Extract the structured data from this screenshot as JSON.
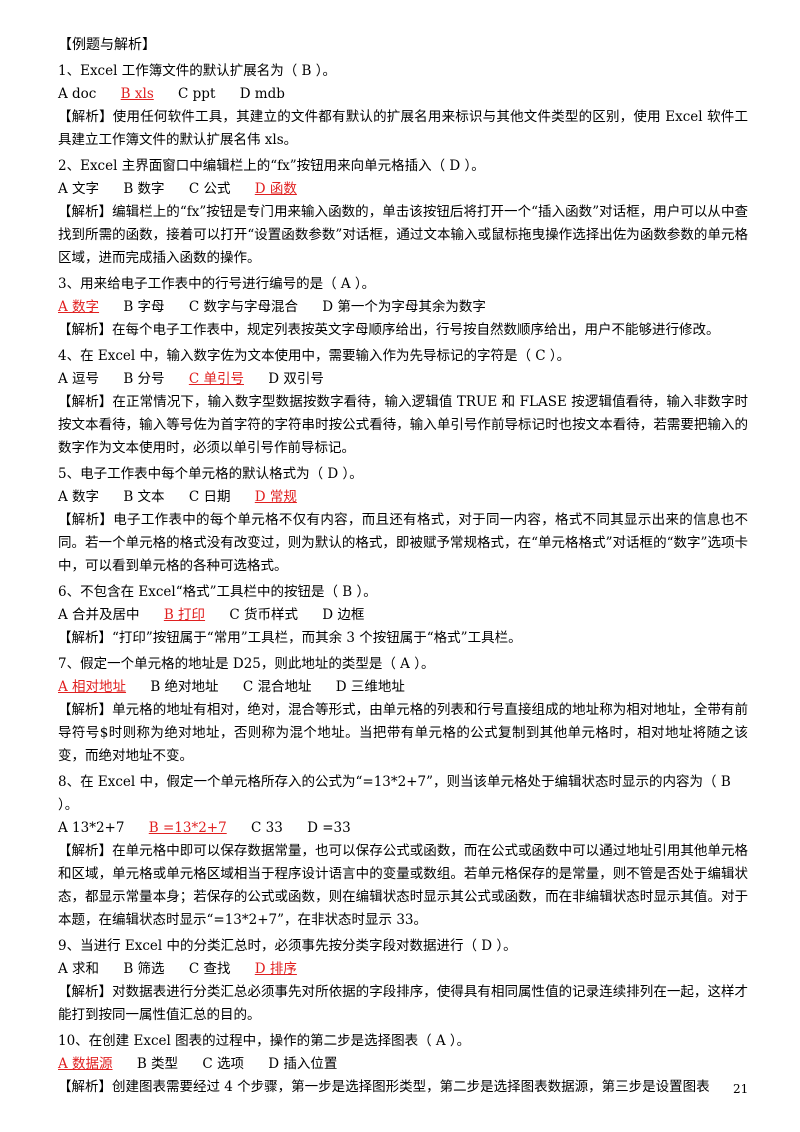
{
  "section_title": "【例题与解析】",
  "questions": [
    {
      "stem": "1、Excel 工作簿文件的默认扩展名为（ B ）。",
      "options": [
        {
          "text": "A doc",
          "correct": false
        },
        {
          "text": "B xls",
          "correct": true
        },
        {
          "text": "C ppt",
          "correct": false
        },
        {
          "text": "D mdb",
          "correct": false
        }
      ],
      "explanation": "【解析】使用任何软件工具，其建立的文件都有默认的扩展名用来标识与其他文件类型的区别，使用 Excel 软件工具建立工作簿文件的默认扩展名伟 xls。"
    },
    {
      "stem": "2、Excel 主界面窗口中编辑栏上的“fx”按钮用来向单元格插入（ D ）。",
      "options": [
        {
          "text": "A 文字",
          "correct": false
        },
        {
          "text": "B 数字",
          "correct": false
        },
        {
          "text": "C 公式",
          "correct": false
        },
        {
          "text": "D 函数",
          "correct": true
        }
      ],
      "explanation": "【解析】编辑栏上的“fx”按钮是专门用来输入函数的，单击该按钮后将打开一个“插入函数”对话框，用户可以从中查找到所需的函数，接着可以打开“设置函数参数”对话框，通过文本输入或鼠标拖曳操作选择出佐为函数参数的单元格区域，进而完成插入函数的操作。"
    },
    {
      "stem": "3、用来给电子工作表中的行号进行编号的是（ A ）。",
      "options": [
        {
          "text": "A 数字",
          "correct": true
        },
        {
          "text": "B 字母",
          "correct": false
        },
        {
          "text": "C 数字与字母混合",
          "correct": false
        },
        {
          "text": "D 第一个为字母其余为数字",
          "correct": false
        }
      ],
      "explanation": "【解析】在每个电子工作表中，规定列表按英文字母顺序给出，行号按自然数顺序给出，用户不能够进行修改。"
    },
    {
      "stem": "4、在 Excel 中，输入数字佐为文本使用中，需要输入作为先导标记的字符是（ C ）。",
      "options": [
        {
          "text": "A 逗号",
          "correct": false
        },
        {
          "text": "B 分号",
          "correct": false
        },
        {
          "text": "C 单引号",
          "correct": true
        },
        {
          "text": "D 双引号",
          "correct": false
        }
      ],
      "explanation": "【解析】在正常情况下，输入数字型数据按数字看待，输入逻辑值 TRUE 和 FLASE 按逻辑值看待，输入非数字时按文本看待，输入等号佐为首字符的字符串时按公式看待，输入单引号作前导标记时也按文本看待，若需要把输入的数字作为文本使用时，必须以单引号作前导标记。"
    },
    {
      "stem": "5、电子工作表中每个单元格的默认格式为（ D ）。",
      "options": [
        {
          "text": "A 数字",
          "correct": false
        },
        {
          "text": "B 文本",
          "correct": false
        },
        {
          "text": "C 日期",
          "correct": false
        },
        {
          "text": "D 常规",
          "correct": true
        }
      ],
      "explanation": "【解析】电子工作表中的每个单元格不仅有内容，而且还有格式，对于同一内容，格式不同其显示出来的信息也不同。若一个单元格的格式没有改变过，则为默认的格式，即被赋予常规格式，在“单元格格式”对话框的“数字”选项卡中，可以看到单元格的各种可选格式。"
    },
    {
      "stem": "6、不包含在 Excel“格式”工具栏中的按钮是（ B ）。",
      "options": [
        {
          "text": "A 合并及居中",
          "correct": false
        },
        {
          "text": "B 打印",
          "correct": true
        },
        {
          "text": "C 货币样式",
          "correct": false
        },
        {
          "text": "D 边框",
          "correct": false
        }
      ],
      "explanation": "【解析】“打印”按钮属于“常用”工具栏，而其余 3 个按钮属于“格式”工具栏。"
    },
    {
      "stem": "7、假定一个单元格的地址是 D25，则此地址的类型是（ A ）。",
      "options": [
        {
          "text": "A 相对地址",
          "correct": true
        },
        {
          "text": "B 绝对地址",
          "correct": false
        },
        {
          "text": "C 混合地址",
          "correct": false
        },
        {
          "text": "D 三维地址",
          "correct": false
        }
      ],
      "explanation": "【解析】单元格的地址有相对，绝对，混合等形式，由单元格的列表和行号直接组成的地址称为相对地址，全带有前导符号$时则称为绝对地址，否则称为混个地址。当把带有单元格的公式复制到其他单元格时，相对地址将随之该变，而绝对地址不变。"
    },
    {
      "stem": "8、在 Excel 中，假定一个单元格所存入的公式为“=13*2+7”，则当该单元格处于编辑状态时显示的内容为（ B ）。",
      "options": [
        {
          "text": "A 13*2+7",
          "correct": false
        },
        {
          "text": "B =13*2+7",
          "correct": true
        },
        {
          "text": "C 33",
          "correct": false
        },
        {
          "text": "D =33",
          "correct": false
        }
      ],
      "explanation": "【解析】在单元格中即可以保存数据常量，也可以保存公式或函数，而在公式或函数中可以通过地址引用其他单元格和区域，单元格或单元格区域相当于程序设计语言中的变量或数组。若单元格保存的是常量，则不管是否处于编辑状态，都显示常量本身；若保存的公式或函数，则在编辑状态时显示其公式或函数，而在非编辑状态时显示其值。对于本题，在编辑状态时显示“=13*2+7”，在非状态时显示 33。"
    },
    {
      "stem": "9、当进行 Excel 中的分类汇总时，必须事先按分类字段对数据进行（ D ）。",
      "options": [
        {
          "text": "A 求和",
          "correct": false
        },
        {
          "text": "B 筛选",
          "correct": false
        },
        {
          "text": "C 查找",
          "correct": false
        },
        {
          "text": "D 排序",
          "correct": true
        }
      ],
      "explanation": "【解析】对数据表进行分类汇总必须事先对所依据的字段排序，使得具有相同属性值的记录连续排列在一起，这样才能打到按同一属性值汇总的目的。"
    },
    {
      "stem": "10、在创建 Excel 图表的过程中，操作的第二步是选择图表（ A ）。",
      "options": [
        {
          "text": "A 数据源",
          "correct": true
        },
        {
          "text": "B 类型",
          "correct": false
        },
        {
          "text": "C 选项",
          "correct": false
        },
        {
          "text": "D 插入位置",
          "correct": false
        }
      ],
      "explanation": "【解析】创建图表需要经过 4 个步骤，第一步是选择图形类型，第二步是选择图表数据源，第三步是设置图表"
    }
  ],
  "page_number": "21",
  "colors": {
    "correct_answer": "#e02020",
    "text": "#000000"
  }
}
